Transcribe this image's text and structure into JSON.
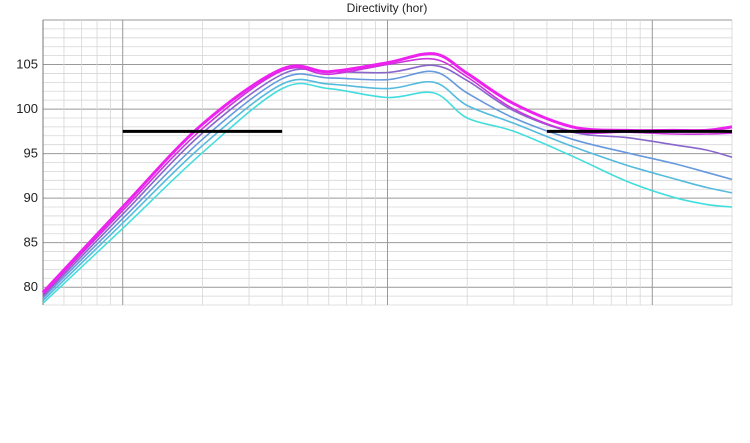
{
  "chart_data": {
    "type": "line",
    "title": "Directivity (hor)",
    "xlabel": "",
    "ylabel": "",
    "x_scale": "log",
    "x": [
      50,
      100,
      200,
      400,
      600,
      1000,
      1500,
      2000,
      3000,
      5000,
      8000,
      12000,
      16000,
      20000
    ],
    "ylim": [
      78,
      110
    ],
    "yticks": [
      80,
      85,
      90,
      95,
      100,
      105
    ],
    "grid": true,
    "colors": {
      "series": [
        "#ee22ee",
        "#cc33dd",
        "#8866cc",
        "#6699dd",
        "#55bbdd",
        "#44dddd"
      ],
      "reference": "#000000",
      "grid_minor": "#d6d6d6",
      "grid_major": "#999999"
    },
    "series": [
      {
        "values": [
          79.4,
          89.0,
          98.3,
          104.5,
          104.2,
          105.2,
          106.2,
          104.0,
          100.6,
          98.0,
          97.6,
          97.6,
          97.6,
          98.0
        ]
      },
      {
        "values": [
          79.2,
          88.6,
          97.8,
          104.3,
          103.9,
          105.0,
          105.6,
          103.6,
          100.0,
          97.5,
          97.4,
          97.2,
          97.2,
          97.3
        ]
      },
      {
        "values": [
          79.0,
          88.2,
          97.3,
          103.9,
          104.2,
          104.1,
          104.9,
          103.2,
          99.8,
          97.4,
          96.8,
          96.0,
          95.4,
          94.6
        ]
      },
      {
        "values": [
          78.8,
          87.7,
          96.6,
          103.4,
          103.5,
          103.3,
          104.2,
          101.8,
          99.0,
          96.6,
          95.1,
          93.9,
          92.9,
          92.1
        ]
      },
      {
        "values": [
          78.5,
          87.2,
          95.9,
          102.8,
          102.8,
          102.3,
          103.0,
          100.4,
          98.4,
          95.8,
          93.7,
          92.2,
          91.2,
          90.6
        ]
      },
      {
        "values": [
          78.2,
          86.6,
          95.1,
          102.3,
          102.3,
          101.3,
          101.8,
          99.0,
          97.5,
          94.7,
          91.9,
          90.1,
          89.3,
          89.0
        ]
      }
    ],
    "reference_lines": [
      {
        "y": 97.5,
        "x_from": 100,
        "x_to": 400
      },
      {
        "y": 97.5,
        "x_from": 4000,
        "x_to": 20000
      }
    ]
  }
}
